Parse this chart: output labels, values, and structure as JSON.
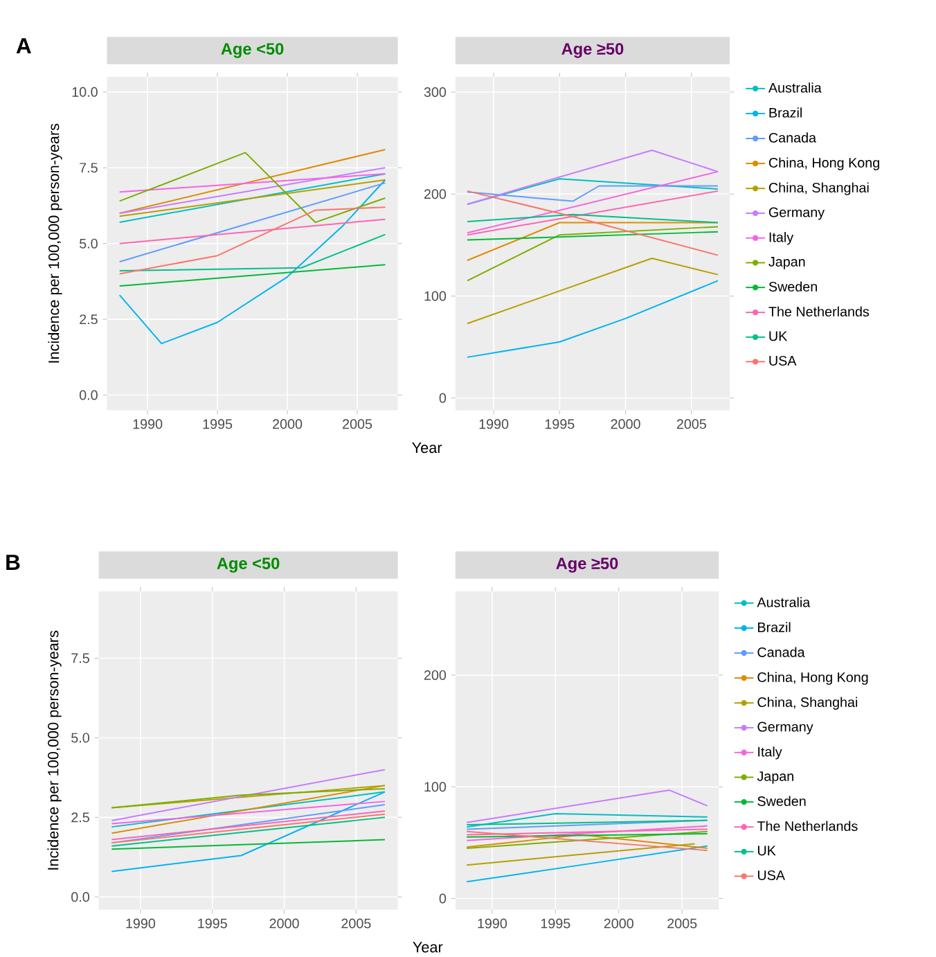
{
  "chart_data": [
    {
      "type": "line",
      "title": "Age <50",
      "ylabel": "Incidence per 100,000 person-years",
      "xlabel": "Year",
      "annotations": [
        "A"
      ],
      "grid": true,
      "xlim": [
        1987.1,
        2007.9
      ],
      "xticks": [
        1990,
        1995,
        2000,
        2005
      ],
      "ylim": [
        -0.5,
        10.5
      ],
      "yticks": [
        {
          "value": 0,
          "label": "0.0"
        },
        2.5,
        {
          "value": 5,
          "label": "5.0"
        },
        7.5,
        {
          "value": 10,
          "label": "10.0"
        }
      ],
      "series": [
        {
          "color": "#00BFC4",
          "x": [
            1988,
            2007
          ],
          "values": [
            5.7,
            7.3
          ]
        },
        {
          "color": "#00B4F0",
          "x": [
            1988,
            1991,
            1995,
            2000,
            2004,
            2007
          ],
          "values": [
            3.3,
            1.7,
            2.4,
            3.9,
            5.6,
            7.1
          ]
        },
        {
          "color": "#619CFF",
          "x": [
            1988,
            2007
          ],
          "values": [
            4.4,
            7.0
          ]
        },
        {
          "color": "#DE8C00",
          "x": [
            1988,
            2007
          ],
          "values": [
            6.0,
            8.1
          ]
        },
        {
          "color": "#B79F00",
          "x": [
            1988,
            2007
          ],
          "values": [
            5.9,
            7.1
          ]
        },
        {
          "color": "#C77CFF",
          "x": [
            1988,
            2007
          ],
          "values": [
            6.0,
            7.5
          ]
        },
        {
          "color": "#F564E3",
          "x": [
            1988,
            2007
          ],
          "values": [
            6.7,
            7.3
          ]
        },
        {
          "color": "#7CAE00",
          "x": [
            1988,
            1997,
            2002,
            2007
          ],
          "values": [
            6.4,
            8.0,
            5.7,
            6.5
          ]
        },
        {
          "color": "#00BA38",
          "x": [
            1988,
            2007
          ],
          "values": [
            3.6,
            4.3
          ]
        },
        {
          "color": "#FF64B0",
          "x": [
            1988,
            2007
          ],
          "values": [
            5.0,
            5.8
          ]
        },
        {
          "color": "#00C08B",
          "x": [
            1988,
            2001,
            2007
          ],
          "values": [
            4.1,
            4.2,
            5.3
          ]
        },
        {
          "color": "#F8766D",
          "x": [
            1988,
            1995,
            2002,
            2007
          ],
          "values": [
            4.0,
            4.6,
            6.1,
            6.2
          ]
        }
      ]
    },
    {
      "type": "line",
      "title": "Age ≥50",
      "legend": "right",
      "grid": true,
      "xlim": [
        1987.1,
        2007.9
      ],
      "xticks": [
        1990,
        1995,
        2000,
        2005
      ],
      "ylim": [
        -12,
        315
      ],
      "yticks": [
        0,
        100,
        200,
        300
      ],
      "series": [
        {
          "name": "Australia",
          "color": "#00BFC4",
          "x": [
            1988,
            1995,
            2007
          ],
          "values": [
            190,
            215,
            205
          ]
        },
        {
          "name": "Brazil",
          "color": "#00B4F0",
          "x": [
            1988,
            1995,
            2000,
            2007
          ],
          "values": [
            40,
            55,
            78,
            115
          ]
        },
        {
          "name": "Canada",
          "color": "#619CFF",
          "x": [
            1988,
            1996,
            1998,
            2007
          ],
          "values": [
            202,
            193,
            208,
            208
          ]
        },
        {
          "name": "China, Hong Kong",
          "color": "#DE8C00",
          "x": [
            1988,
            1995,
            2007
          ],
          "values": [
            135,
            172,
            172
          ]
        },
        {
          "name": "China, Shanghai",
          "color": "#B79F00",
          "x": [
            1988,
            2002,
            2007
          ],
          "values": [
            73,
            137,
            121
          ]
        },
        {
          "name": "Germany",
          "color": "#C77CFF",
          "x": [
            1988,
            1994,
            2002,
            2007
          ],
          "values": [
            190,
            213,
            243,
            222
          ]
        },
        {
          "name": "Italy",
          "color": "#F564E3",
          "x": [
            1988,
            2007
          ],
          "values": [
            162,
            222
          ]
        },
        {
          "name": "Japan",
          "color": "#7CAE00",
          "x": [
            1988,
            1995,
            2007
          ],
          "values": [
            115,
            160,
            168
          ]
        },
        {
          "name": "Sweden",
          "color": "#00BA38",
          "x": [
            1988,
            2007
          ],
          "values": [
            155,
            163
          ]
        },
        {
          "name": "The Netherlands",
          "color": "#FF64B0",
          "x": [
            1988,
            2007
          ],
          "values": [
            160,
            203
          ]
        },
        {
          "name": "UK",
          "color": "#00C08B",
          "x": [
            1988,
            1996,
            2007
          ],
          "values": [
            173,
            180,
            172
          ]
        },
        {
          "name": "USA",
          "color": "#F8766D",
          "x": [
            1988,
            1996,
            2007
          ],
          "values": [
            203,
            178,
            140
          ]
        }
      ]
    },
    {
      "type": "line",
      "title": "Age <50",
      "ylabel": "Incidence per 100,000 person-years",
      "xlabel": "Year",
      "annotations": [
        "B"
      ],
      "grid": true,
      "xlim": [
        1987.1,
        2007.9
      ],
      "xticks": [
        1990,
        1995,
        2000,
        2005
      ],
      "ylim": [
        -0.4,
        9.6
      ],
      "yticks": [
        {
          "value": 0,
          "label": "0.0"
        },
        2.5,
        {
          "value": 5,
          "label": "5.0"
        },
        7.5
      ],
      "series": [
        {
          "color": "#00BFC4",
          "x": [
            1988,
            2007
          ],
          "values": [
            2.2,
            3.3
          ]
        },
        {
          "color": "#00B4F0",
          "x": [
            1988,
            1997,
            2007
          ],
          "values": [
            0.8,
            1.3,
            3.3
          ]
        },
        {
          "color": "#619CFF",
          "x": [
            1988,
            2007
          ],
          "values": [
            1.7,
            2.9
          ]
        },
        {
          "color": "#DE8C00",
          "x": [
            1988,
            2007
          ],
          "values": [
            2.0,
            3.5
          ]
        },
        {
          "color": "#B79F00",
          "x": [
            1988,
            2007
          ],
          "values": [
            2.8,
            3.5
          ]
        },
        {
          "color": "#C77CFF",
          "x": [
            1988,
            2007
          ],
          "values": [
            2.4,
            4.0
          ]
        },
        {
          "color": "#F564E3",
          "x": [
            1988,
            2007
          ],
          "values": [
            2.3,
            3.0
          ]
        },
        {
          "color": "#7CAE00",
          "x": [
            1988,
            1997,
            2007
          ],
          "values": [
            2.8,
            3.2,
            3.4
          ]
        },
        {
          "color": "#00BA38",
          "x": [
            1988,
            2007
          ],
          "values": [
            1.5,
            1.8
          ]
        },
        {
          "color": "#FF64B0",
          "x": [
            1988,
            2007
          ],
          "values": [
            1.8,
            2.7
          ]
        },
        {
          "color": "#00C08B",
          "x": [
            1988,
            2007
          ],
          "values": [
            1.6,
            2.5
          ]
        },
        {
          "color": "#F8766D",
          "x": [
            1988,
            2007
          ],
          "values": [
            1.7,
            2.6
          ]
        }
      ]
    },
    {
      "type": "line",
      "title": "Age ≥50",
      "legend": "right",
      "grid": true,
      "xlim": [
        1987.1,
        2007.9
      ],
      "xticks": [
        1990,
        1995,
        2000,
        2005
      ],
      "ylim": [
        -10,
        275
      ],
      "yticks": [
        0,
        100,
        200
      ],
      "series": [
        {
          "name": "Australia",
          "color": "#00BFC4",
          "x": [
            1988,
            1995,
            2007
          ],
          "values": [
            64,
            76,
            73
          ]
        },
        {
          "name": "Brazil",
          "color": "#00B4F0",
          "x": [
            1988,
            1997,
            2007
          ],
          "values": [
            15,
            30,
            47
          ]
        },
        {
          "name": "Canada",
          "color": "#619CFF",
          "x": [
            1988,
            2007
          ],
          "values": [
            62,
            70
          ]
        },
        {
          "name": "China, Hong Kong",
          "color": "#DE8C00",
          "x": [
            1988,
            1997,
            2007
          ],
          "values": [
            46,
            57,
            45
          ]
        },
        {
          "name": "China, Shanghai",
          "color": "#B79F00",
          "x": [
            1988,
            2006
          ],
          "values": [
            30,
            49
          ]
        },
        {
          "name": "Germany",
          "color": "#C77CFF",
          "x": [
            1988,
            2004,
            2007
          ],
          "values": [
            68,
            97,
            83
          ]
        },
        {
          "name": "Italy",
          "color": "#F564E3",
          "x": [
            1988,
            2007
          ],
          "values": [
            52,
            65
          ]
        },
        {
          "name": "Japan",
          "color": "#7CAE00",
          "x": [
            1988,
            2007
          ],
          "values": [
            45,
            60
          ]
        },
        {
          "name": "Sweden",
          "color": "#00BA38",
          "x": [
            1988,
            2007
          ],
          "values": [
            55,
            58
          ]
        },
        {
          "name": "The Netherlands",
          "color": "#FF64B0",
          "x": [
            1988,
            2007
          ],
          "values": [
            57,
            62
          ]
        },
        {
          "name": "UK",
          "color": "#00C08B",
          "x": [
            1988,
            2007
          ],
          "values": [
            66,
            70
          ]
        },
        {
          "name": "USA",
          "color": "#F8766D",
          "x": [
            1988,
            2007
          ],
          "values": [
            60,
            43
          ]
        }
      ]
    }
  ]
}
